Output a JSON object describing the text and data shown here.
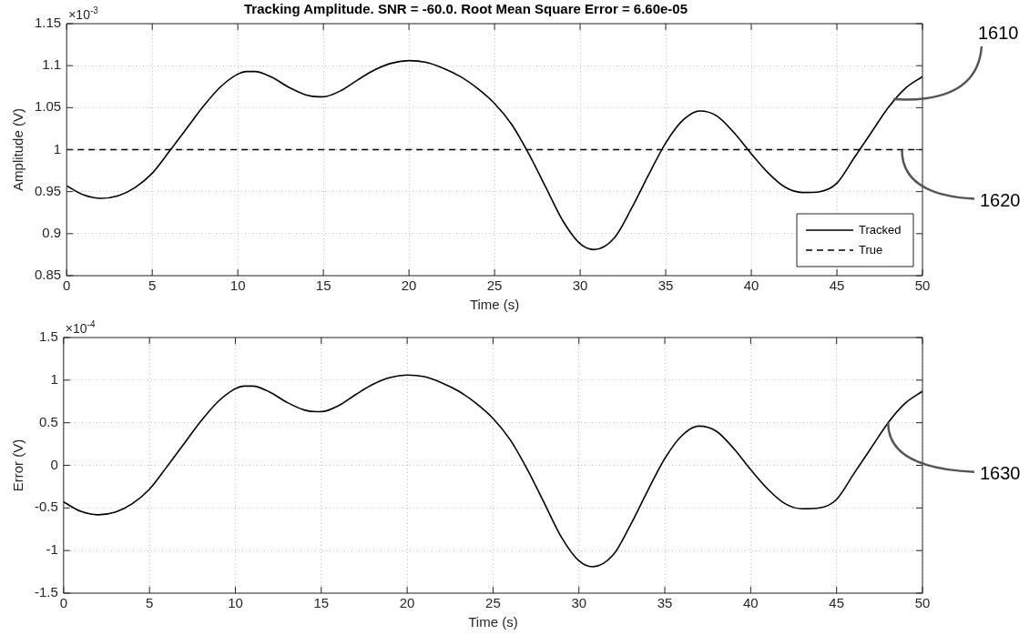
{
  "chart_data": [
    {
      "type": "line",
      "title": "Tracking Amplitude. SNR = -60.0. Root Mean Square Error = 6.60e-05",
      "xlabel": "Time (s)",
      "ylabel": "Amplitude (V)",
      "xlim": [
        0,
        50
      ],
      "xticks": [
        0,
        5,
        10,
        15,
        20,
        25,
        30,
        35,
        40,
        45,
        50
      ],
      "ylim": [
        0.85,
        1.15
      ],
      "yticks": [
        0.85,
        0.9,
        0.95,
        1,
        1.05,
        1.1,
        1.15
      ],
      "grid": true,
      "legend": "bottom right",
      "series": [
        {
          "name": "Tracked",
          "color": "#000000",
          "line_style": "solid",
          "x": [
            0,
            1,
            2,
            3,
            4,
            5,
            6,
            7,
            8,
            9,
            10,
            10.5,
            11,
            12,
            13,
            14,
            14.7,
            15,
            16,
            17,
            18,
            19,
            20,
            21,
            22,
            23,
            24,
            25,
            26,
            27,
            28,
            29,
            30,
            30.8,
            32,
            33,
            34,
            35,
            36,
            37,
            38,
            39,
            40,
            41,
            42,
            43,
            44,
            45,
            46,
            47,
            48,
            49,
            50
          ],
          "values": [
            0.957,
            0.946,
            0.942,
            0.945,
            0.955,
            0.972,
            0.998,
            1.025,
            1.052,
            1.075,
            1.09,
            1.093,
            1.093,
            1.086,
            1.074,
            1.065,
            1.063,
            1.063,
            1.07,
            1.083,
            1.095,
            1.103,
            1.106,
            1.104,
            1.097,
            1.087,
            1.073,
            1.055,
            1.03,
            0.995,
            0.955,
            0.915,
            0.888,
            0.881,
            0.895,
            0.93,
            0.97,
            1.008,
            1.035,
            1.046,
            1.04,
            1.02,
            0.995,
            0.972,
            0.955,
            0.949,
            0.95,
            0.96,
            0.99,
            1.02,
            1.05,
            1.073,
            1.087
          ]
        },
        {
          "name": "True",
          "color": "#000000",
          "line_style": "dashed",
          "x": [
            0,
            50
          ],
          "values": [
            1,
            1
          ]
        }
      ],
      "annotations": [
        "×10$^{-3}$",
        {
          "text": "1610",
          "x": 48.3,
          "y": 1.06
        },
        {
          "text": "1620",
          "x": 48.8,
          "y": 1
        }
      ]
    },
    {
      "type": "line",
      "xlabel": "Time (s)",
      "ylabel": "Error (V)",
      "xlim": [
        0,
        50
      ],
      "xticks": [
        0,
        5,
        10,
        15,
        20,
        25,
        30,
        35,
        40,
        45,
        50
      ],
      "ylim": [
        -1.5,
        1.5
      ],
      "yticks": [
        -1.5,
        -1,
        -0.5,
        0,
        0.5,
        1,
        1.5
      ],
      "grid": true,
      "series": [
        {
          "color": "#000000",
          "line_style": "solid",
          "x": [
            0,
            1,
            2,
            3,
            4,
            5,
            6,
            7,
            8,
            9,
            10,
            10.5,
            11,
            12,
            13,
            14,
            14.7,
            15,
            16,
            17,
            18,
            19,
            20,
            21,
            22,
            23,
            24,
            25,
            26,
            27,
            28,
            29,
            30,
            30.8,
            32,
            33,
            34,
            35,
            36,
            37,
            38,
            39,
            40,
            41,
            42,
            43,
            44,
            45,
            46,
            47,
            48,
            49,
            50
          ],
          "values": [
            -0.43,
            -0.54,
            -0.58,
            -0.55,
            -0.45,
            -0.28,
            -0.02,
            0.25,
            0.52,
            0.75,
            0.9,
            0.93,
            0.93,
            0.86,
            0.74,
            0.65,
            0.63,
            0.63,
            0.7,
            0.83,
            0.95,
            1.03,
            1.06,
            1.04,
            0.97,
            0.87,
            0.73,
            0.55,
            0.3,
            -0.05,
            -0.45,
            -0.85,
            -1.12,
            -1.19,
            -1.05,
            -0.7,
            -0.3,
            0.08,
            0.35,
            0.46,
            0.4,
            0.2,
            -0.05,
            -0.28,
            -0.45,
            -0.51,
            -0.5,
            -0.4,
            -0.1,
            0.2,
            0.5,
            0.73,
            0.87
          ]
        }
      ],
      "annotations": [
        "×10$^{-4}$",
        {
          "text": "1630",
          "x": 48,
          "y": 0.5
        }
      ]
    }
  ]
}
